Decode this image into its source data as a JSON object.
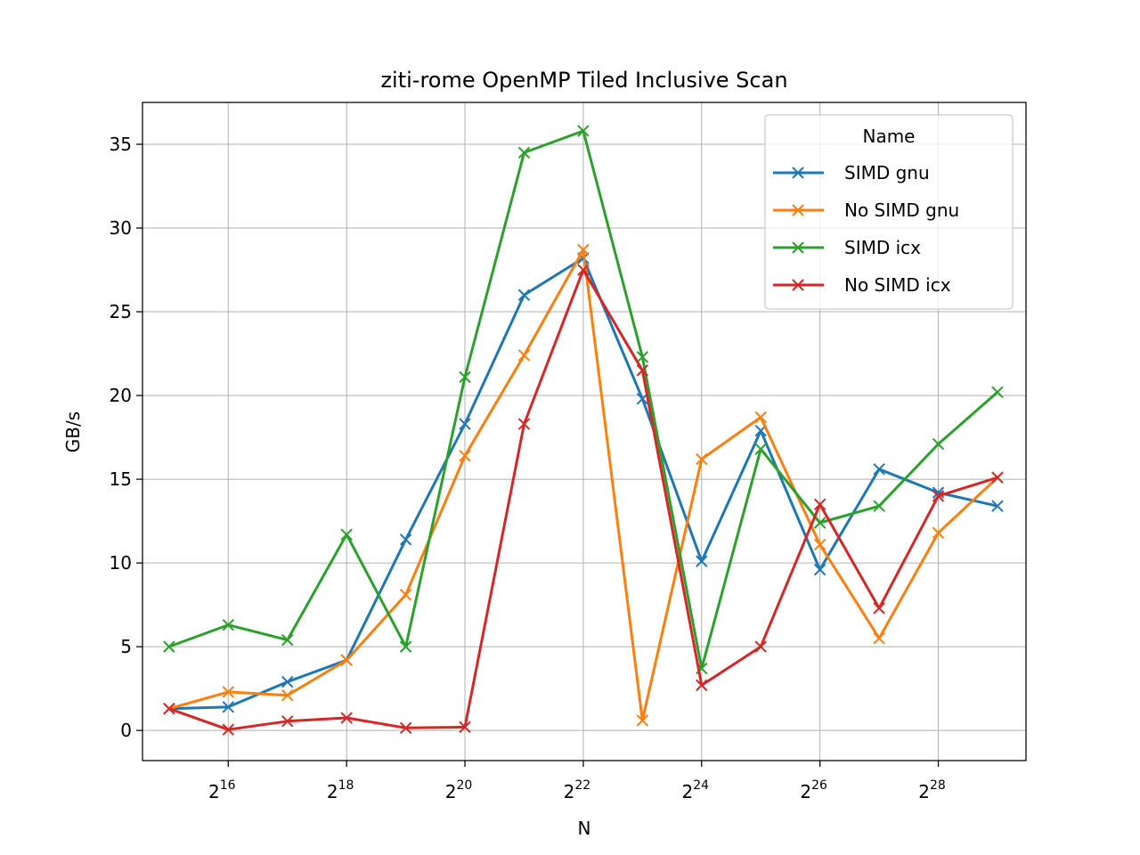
{
  "chart_data": {
    "type": "line",
    "title": "ziti-rome OpenMP Tiled Inclusive Scan",
    "xlabel": "N",
    "ylabel": "GB/s",
    "x_scale": "log2",
    "x": [
      32768,
      65536,
      131072,
      262144,
      524288,
      1048576,
      2097152,
      4194304,
      8388608,
      16777216,
      33554432,
      67108864,
      134217728,
      268435456,
      536870912
    ],
    "x_ticks": [
      {
        "value": 65536,
        "base": "2",
        "exp": "16"
      },
      {
        "value": 262144,
        "base": "2",
        "exp": "18"
      },
      {
        "value": 1048576,
        "base": "2",
        "exp": "20"
      },
      {
        "value": 4194304,
        "base": "2",
        "exp": "22"
      },
      {
        "value": 16777216,
        "base": "2",
        "exp": "24"
      },
      {
        "value": 67108864,
        "base": "2",
        "exp": "26"
      },
      {
        "value": 268435456,
        "base": "2",
        "exp": "28"
      }
    ],
    "y_ticks": [
      0,
      5,
      10,
      15,
      20,
      25,
      30,
      35
    ],
    "xlim": [
      24000,
      750000000
    ],
    "ylim": [
      -1.8,
      37.5
    ],
    "grid": true,
    "legend": {
      "title": "Name",
      "placement": "top-right"
    },
    "series": [
      {
        "name": "SIMD gnu",
        "color": "#1f77b4",
        "values": [
          1.3,
          1.4,
          2.9,
          4.2,
          11.4,
          18.3,
          26.0,
          28.2,
          19.8,
          10.1,
          17.9,
          9.6,
          15.6,
          14.2,
          13.4
        ]
      },
      {
        "name": "No SIMD gnu",
        "color": "#ff7f0e",
        "values": [
          1.3,
          2.3,
          2.1,
          4.2,
          8.1,
          16.4,
          22.4,
          28.7,
          0.6,
          16.2,
          18.7,
          11.1,
          5.5,
          11.8,
          15.1
        ]
      },
      {
        "name": "SIMD icx",
        "color": "#2ca02c",
        "values": [
          5.0,
          6.3,
          5.4,
          11.7,
          5.0,
          21.1,
          34.5,
          35.8,
          22.3,
          3.7,
          16.8,
          12.4,
          13.4,
          17.1,
          20.2
        ]
      },
      {
        "name": "No SIMD icx",
        "color": "#d62728",
        "values": [
          1.3,
          0.05,
          0.55,
          0.75,
          0.15,
          0.2,
          18.3,
          27.5,
          21.5,
          2.7,
          5.0,
          13.5,
          7.3,
          14.0,
          15.1
        ]
      }
    ]
  }
}
